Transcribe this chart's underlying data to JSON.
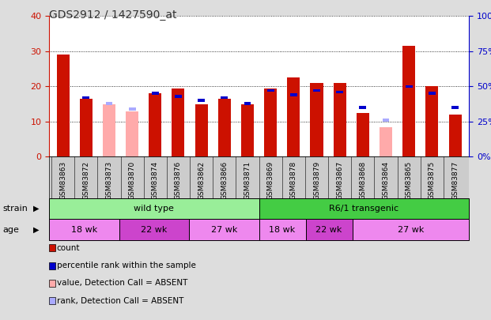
{
  "title": "GDS2912 / 1427590_at",
  "samples": [
    "GSM83863",
    "GSM83872",
    "GSM83873",
    "GSM83870",
    "GSM83874",
    "GSM83876",
    "GSM83862",
    "GSM83866",
    "GSM83871",
    "GSM83869",
    "GSM83878",
    "GSM83879",
    "GSM83867",
    "GSM83868",
    "GSM83864",
    "GSM83865",
    "GSM83875",
    "GSM83877"
  ],
  "count_values": [
    29,
    16.5,
    null,
    null,
    18,
    19.5,
    15,
    16.5,
    15,
    19.5,
    22.5,
    21,
    21,
    12.5,
    null,
    31.5,
    20,
    12
  ],
  "absent_count_values": [
    null,
    null,
    15,
    13,
    null,
    null,
    null,
    null,
    null,
    null,
    null,
    null,
    null,
    null,
    8.5,
    null,
    null,
    null
  ],
  "percentile_values": [
    null,
    42,
    null,
    null,
    45,
    43,
    40,
    42,
    38,
    47,
    44,
    47,
    46,
    35,
    null,
    50,
    45,
    35
  ],
  "absent_percentile_values": [
    null,
    null,
    38,
    34,
    null,
    null,
    null,
    null,
    null,
    null,
    null,
    null,
    null,
    null,
    26,
    null,
    null,
    null
  ],
  "absent_flags": [
    false,
    false,
    true,
    true,
    false,
    false,
    false,
    false,
    false,
    false,
    false,
    false,
    false,
    false,
    true,
    false,
    false,
    false
  ],
  "strain_groups": [
    {
      "label": "wild type",
      "start": 0,
      "end": 9,
      "color": "#99ee99"
    },
    {
      "label": "R6/1 transgenic",
      "start": 9,
      "end": 18,
      "color": "#44cc44"
    }
  ],
  "age_groups": [
    {
      "label": "18 wk",
      "start": 0,
      "end": 3,
      "color": "#ee88ee"
    },
    {
      "label": "22 wk",
      "start": 3,
      "end": 6,
      "color": "#cc44cc"
    },
    {
      "label": "27 wk",
      "start": 6,
      "end": 9,
      "color": "#ee88ee"
    },
    {
      "label": "18 wk",
      "start": 9,
      "end": 11,
      "color": "#ee88ee"
    },
    {
      "label": "22 wk",
      "start": 11,
      "end": 13,
      "color": "#cc44cc"
    },
    {
      "label": "27 wk",
      "start": 13,
      "end": 18,
      "color": "#ee88ee"
    }
  ],
  "ylim_left": [
    0,
    40
  ],
  "ylim_right": [
    0,
    100
  ],
  "yticks_left": [
    0,
    10,
    20,
    30,
    40
  ],
  "yticks_right": [
    0,
    25,
    50,
    75,
    100
  ],
  "bar_width": 0.55,
  "count_color": "#cc1100",
  "absent_count_color": "#ffaaaa",
  "percentile_color": "#0000cc",
  "absent_percentile_color": "#aaaaff",
  "grid_color": "#000000",
  "background_color": "#dddddd",
  "plot_bg_color": "#ffffff",
  "title_color": "#333333",
  "left_axis_color": "#cc1100",
  "right_axis_color": "#0000cc",
  "xtick_bg_color": "#cccccc"
}
